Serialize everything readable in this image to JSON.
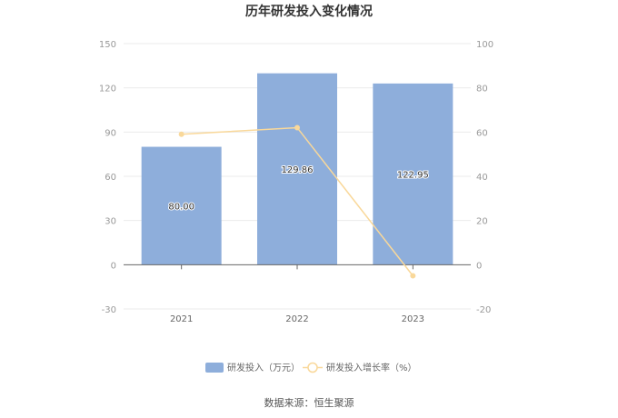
{
  "chart_data": {
    "type": "bar",
    "title": "历年研发投入变化情况",
    "categories": [
      "2021",
      "2022",
      "2023"
    ],
    "series": [
      {
        "name": "研发投入（万元）",
        "type": "bar",
        "axis": "left",
        "color": "#8eaedb",
        "values": [
          80.0,
          129.86,
          122.95
        ],
        "labels": [
          "80.00",
          "129.86",
          "122.95"
        ]
      },
      {
        "name": "研发投入增长率（%）",
        "type": "line",
        "axis": "right",
        "color": "#f9d89a",
        "values": [
          59,
          62,
          -5
        ]
      }
    ],
    "y_left": {
      "min": -30,
      "max": 150,
      "ticks": [
        "150",
        "120",
        "90",
        "60",
        "30",
        "0",
        "-30"
      ]
    },
    "y_right": {
      "min": -20,
      "max": 100,
      "ticks": [
        "100",
        "80",
        "60",
        "40",
        "20",
        "0",
        "-20"
      ]
    },
    "grid": true,
    "legend_position": "bottom"
  },
  "source": "数据来源：恒生聚源"
}
